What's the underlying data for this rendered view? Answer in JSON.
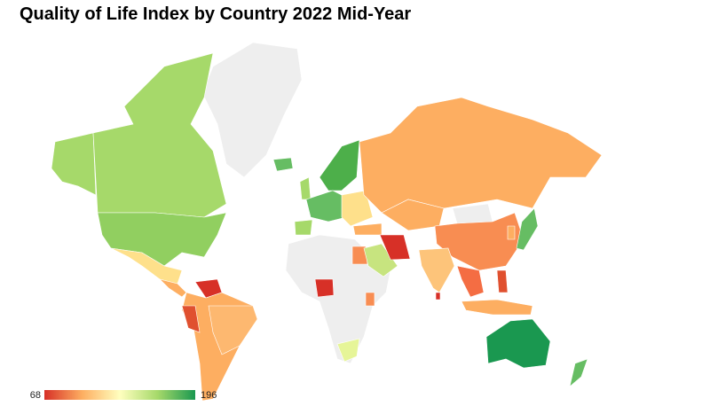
{
  "title": "Quality of Life Index by Country 2022 Mid-Year",
  "legend": {
    "min": 68,
    "max": 196,
    "colors": [
      "#d73027",
      "#fdae61",
      "#ffffbf",
      "#a6d96a",
      "#1a9850"
    ]
  }
}
